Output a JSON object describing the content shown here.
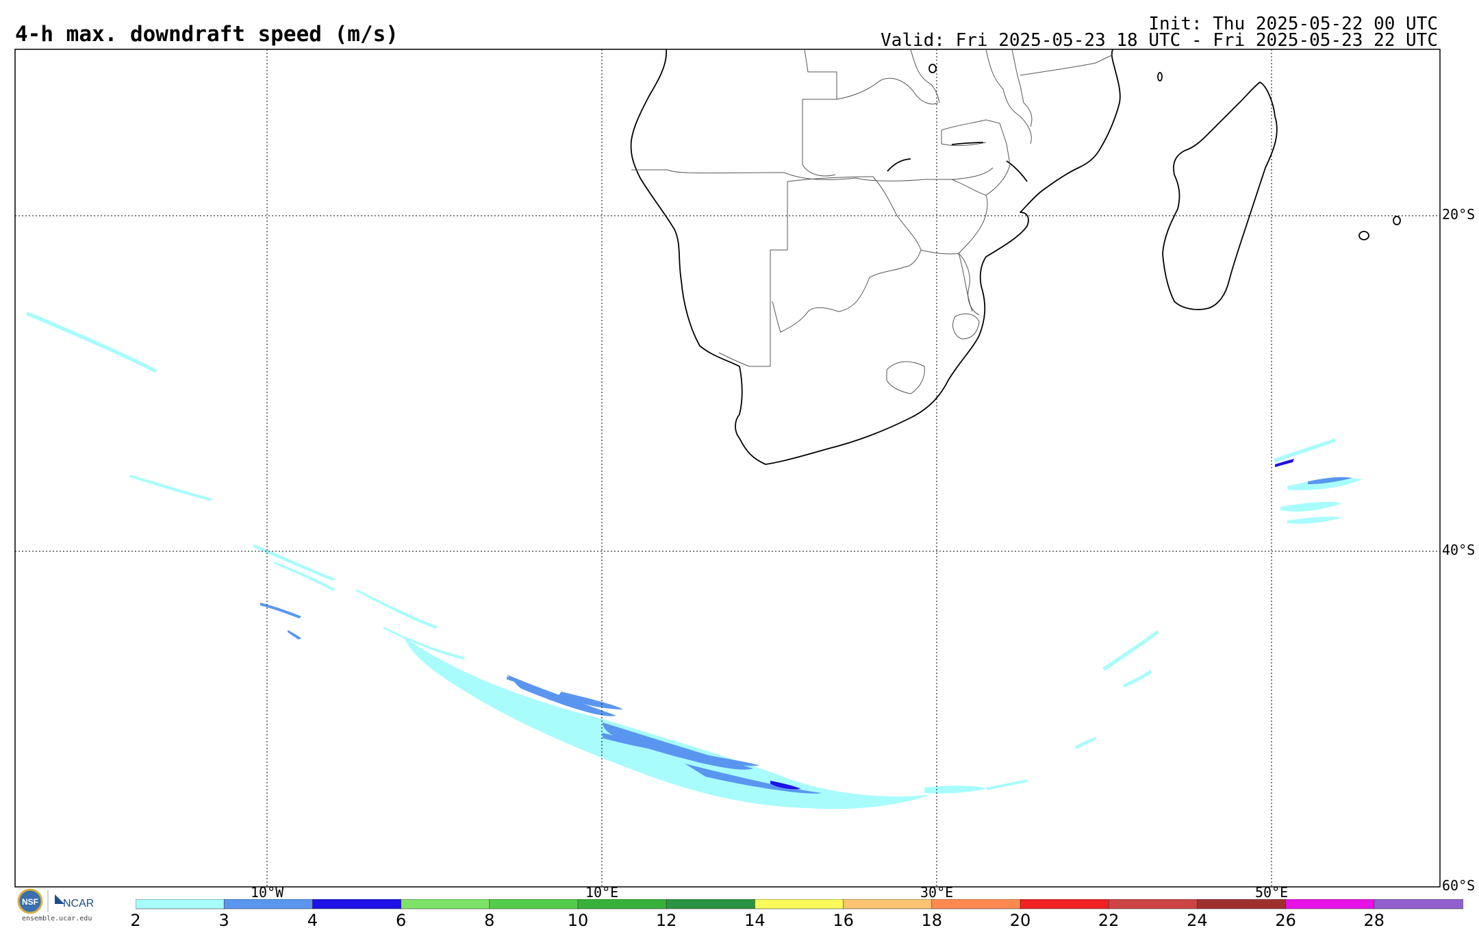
{
  "header": {
    "title": "4-h max. downdraft speed (m/s)",
    "init": "Init: Thu 2025-05-22 00 UTC",
    "valid": "Valid: Fri 2025-05-23 18 UTC - Fri 2025-05-23 22 UTC"
  },
  "map": {
    "lat_labels": [
      "20°S",
      "40°S",
      "60°S"
    ],
    "lon_labels": [
      "10°W",
      "10°E",
      "30°E",
      "50°E"
    ],
    "grid": true
  },
  "logo": {
    "nsf": "NSF",
    "ncar": "NCAR",
    "url": "ensemble.ucar.edu"
  },
  "colorbar": {
    "labels": [
      "2",
      "3",
      "4",
      "6",
      "8",
      "10",
      "12",
      "14",
      "16",
      "18",
      "20",
      "22",
      "24",
      "26",
      "28"
    ],
    "colors": [
      "#a8fcfc",
      "#5a96f0",
      "#1e10e6",
      "#7ee268",
      "#54cc4c",
      "#38b03c",
      "#2a9440",
      "#fafa5a",
      "#fcc470",
      "#fc8a50",
      "#f02222",
      "#cc4444",
      "#a03030",
      "#e612e6",
      "#9060cc"
    ]
  }
}
